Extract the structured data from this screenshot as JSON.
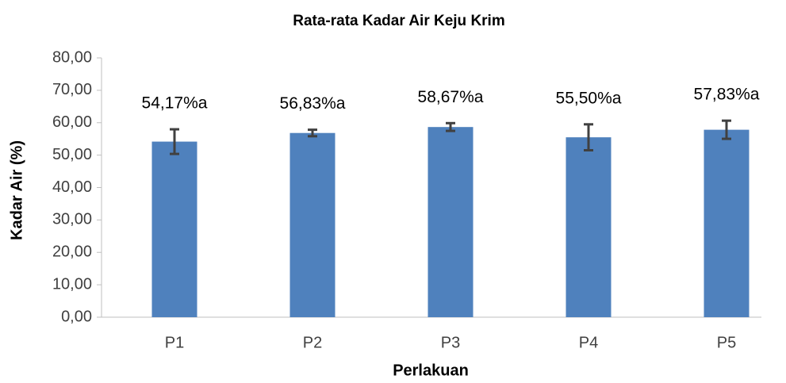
{
  "chart_data": {
    "type": "bar",
    "title": "Rata-rata Kadar Air Keju Krim",
    "xlabel": "Perlakuan",
    "ylabel": "Kadar Air (%)",
    "categories": [
      "P1",
      "P2",
      "P3",
      "P4",
      "P5"
    ],
    "values": [
      54.17,
      56.83,
      58.67,
      55.5,
      57.83
    ],
    "errors": [
      3.8,
      1.0,
      1.2,
      4.0,
      2.8
    ],
    "value_labels": [
      "54,17%a",
      "56,83%a",
      "58,67%a",
      "55,50%a",
      "57,83%a"
    ],
    "color": "#4f81bd",
    "error_color": "#404040",
    "ylim": [
      0,
      80
    ],
    "yticks": [
      {
        "value": 0,
        "label": "0,00"
      },
      {
        "value": 10,
        "label": "10,00"
      },
      {
        "value": 20,
        "label": "20,00"
      },
      {
        "value": 30,
        "label": "30,00"
      },
      {
        "value": 40,
        "label": "40,00"
      },
      {
        "value": 50,
        "label": "50,00"
      },
      {
        "value": 60,
        "label": "60,00"
      },
      {
        "value": 70,
        "label": "70,00"
      },
      {
        "value": 80,
        "label": "80,00"
      }
    ],
    "grid": false
  }
}
